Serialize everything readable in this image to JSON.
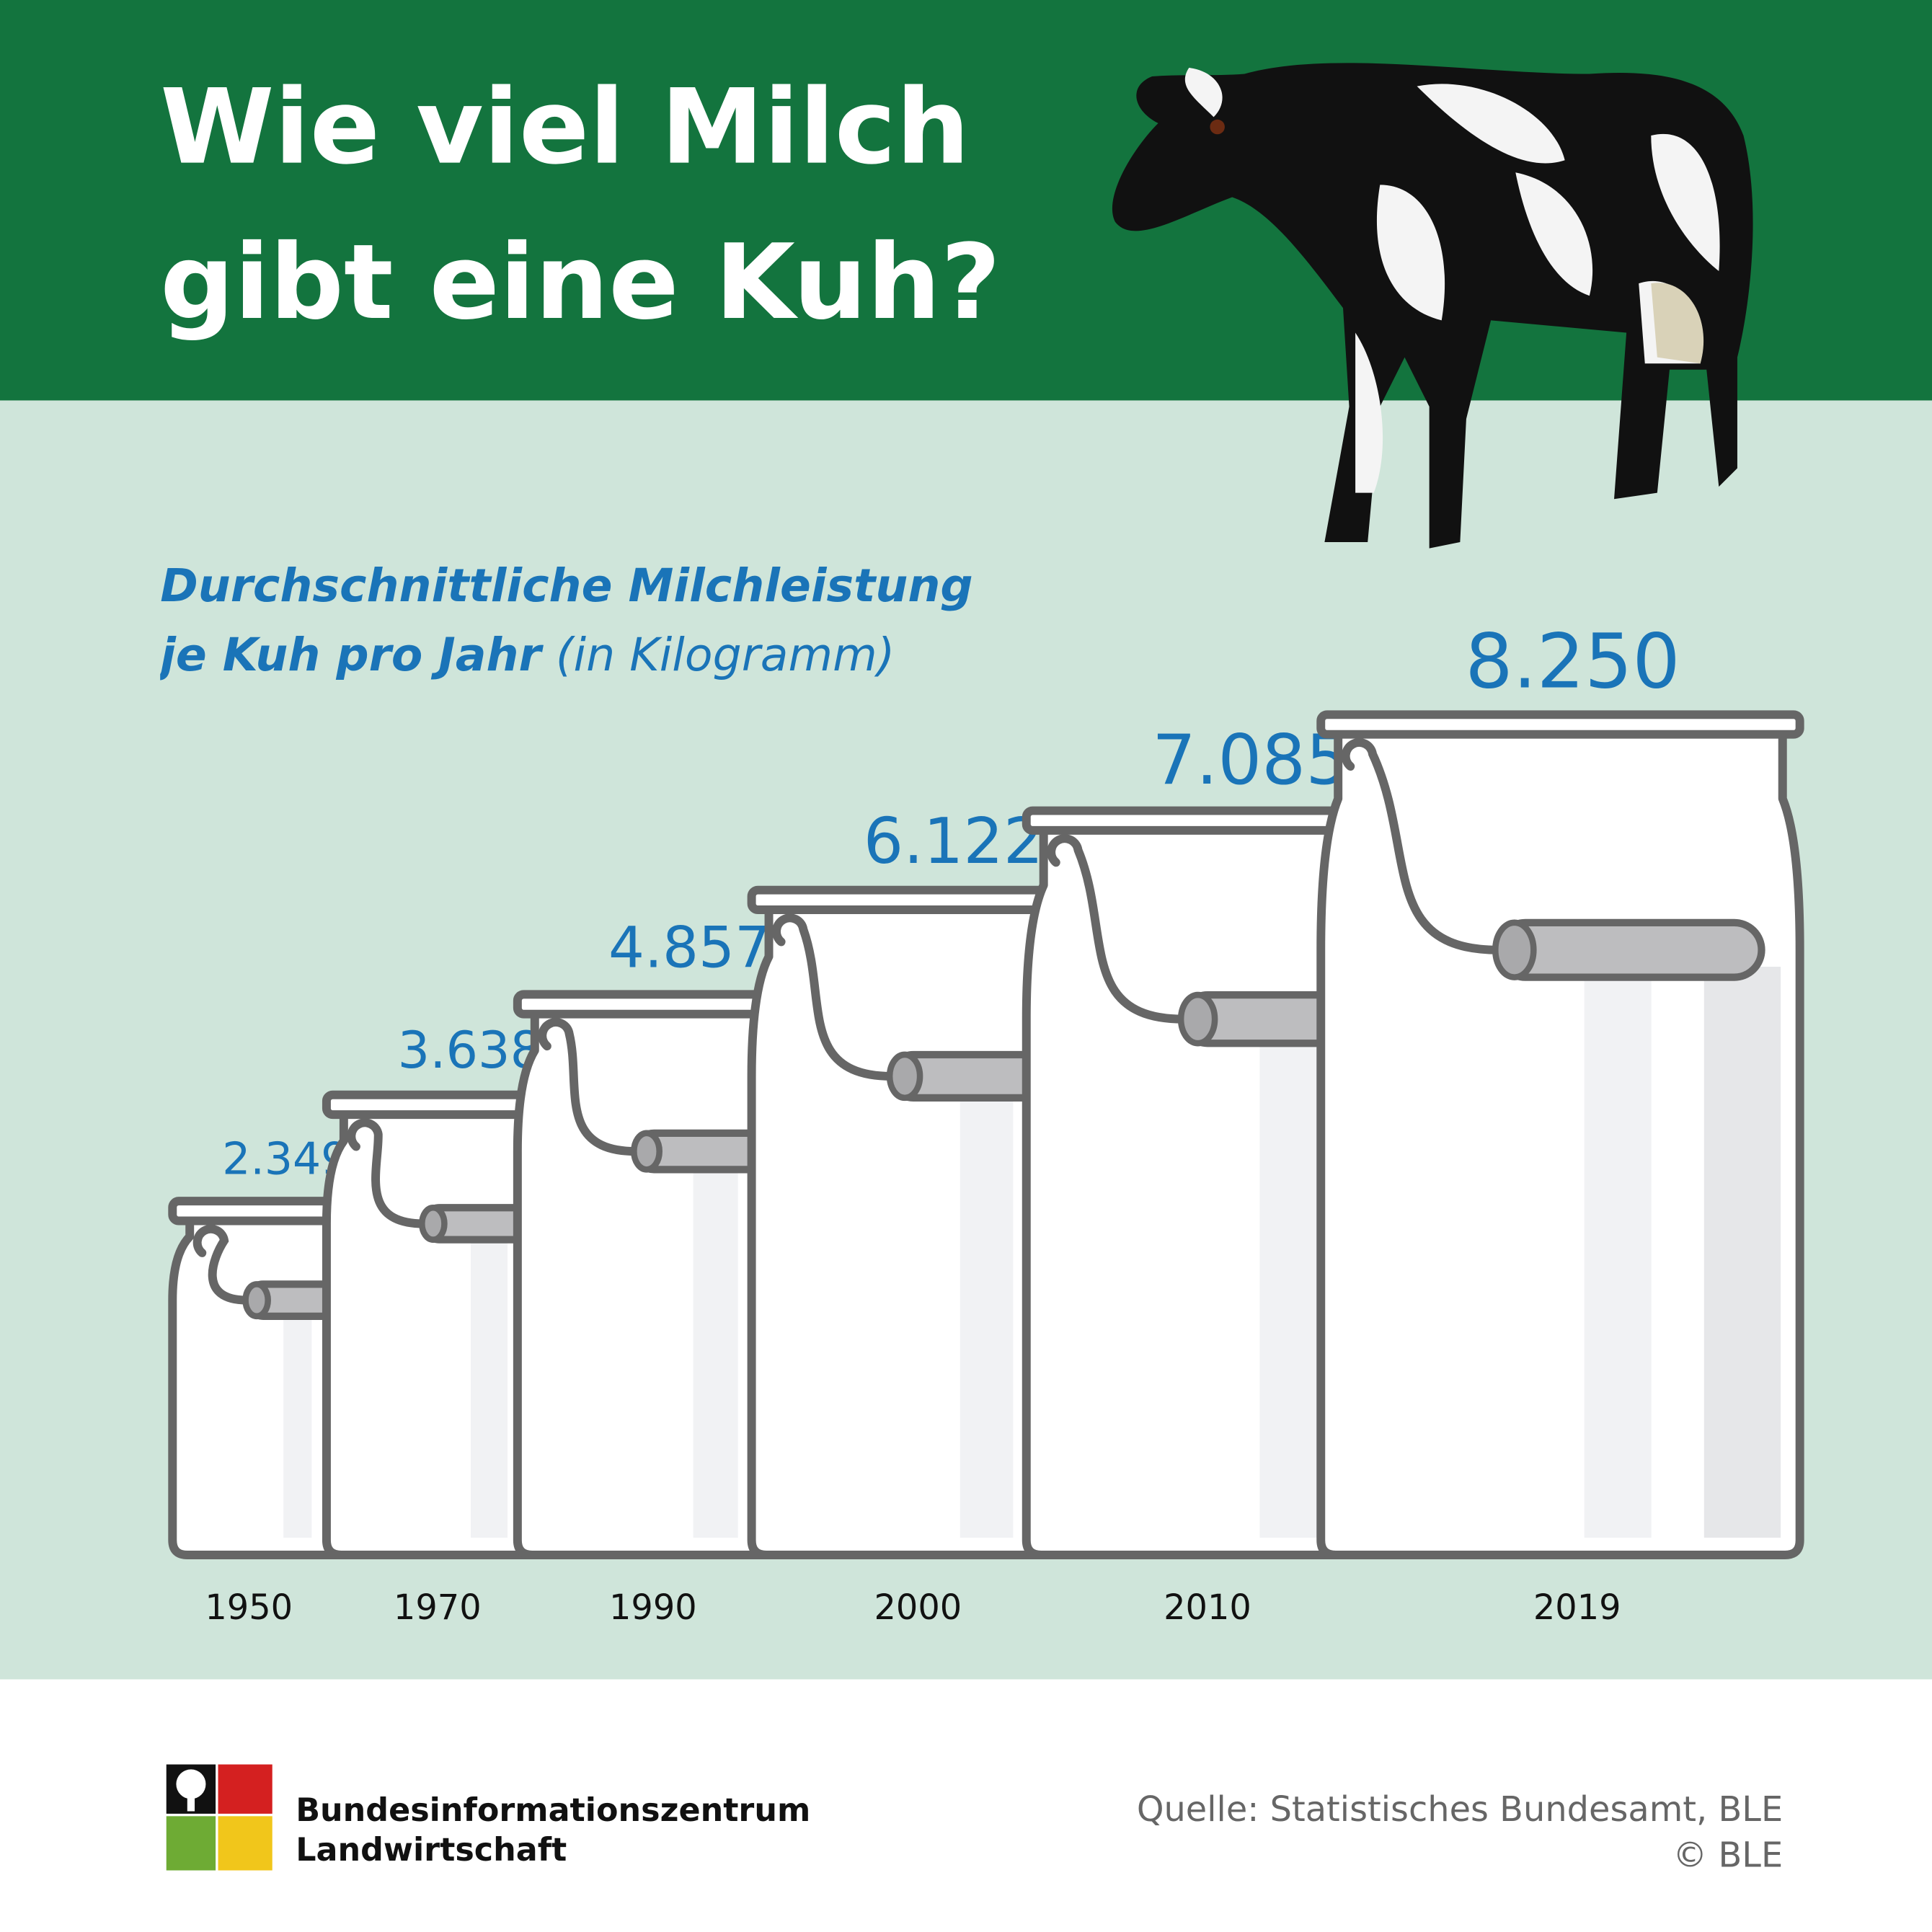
{
  "chart_data": {
    "type": "bar",
    "title": "Wie viel Milch gibt eine Kuh?",
    "subtitle": "Durchschnittliche Milchleistung je Kuh pro Jahr",
    "unit": "(in Kilogramm)",
    "categories": [
      "1950",
      "1970",
      "1990",
      "2000",
      "2010",
      "2019"
    ],
    "values": [
      2349,
      3638,
      4857,
      6122,
      7085,
      8250
    ],
    "value_labels": [
      "2.349",
      "3.638",
      "4.857",
      "6.122",
      "7.085",
      "8.250"
    ],
    "color": "#ffffff",
    "label_color": "#1a74b8",
    "source": "Quelle: Statistisches Bundesamt, BLE",
    "copyright": "© BLE",
    "logo_text": [
      "Bundesinformationszentrum",
      "Landwirtschaft"
    ]
  }
}
